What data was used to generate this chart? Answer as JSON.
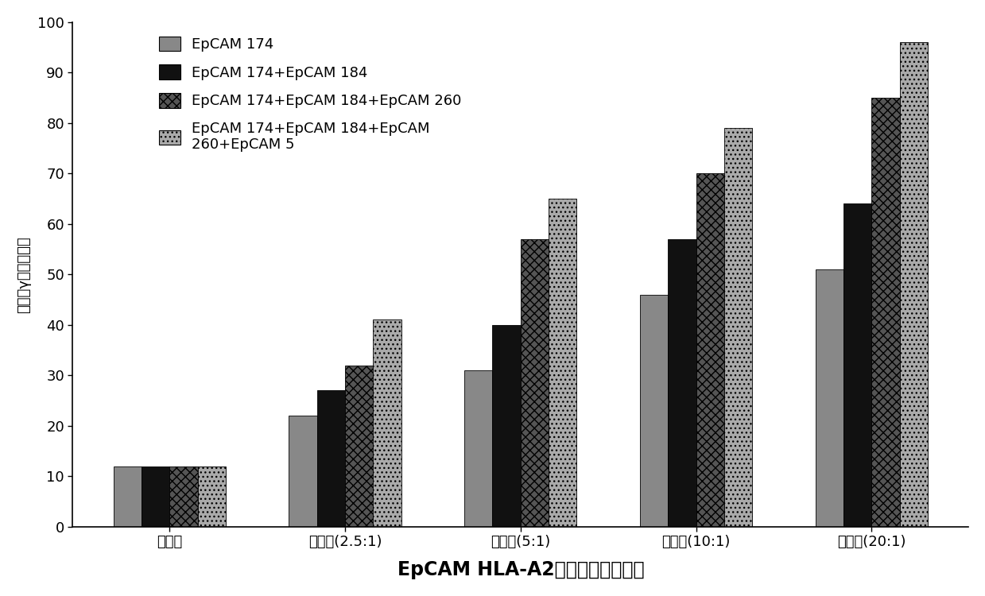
{
  "categories": [
    "对照组",
    "效靶比(2.5:1)",
    "效靶比(5:1)",
    "效靶比(10:1)",
    "效靶比(20:1)"
  ],
  "series": [
    {
      "label": "EpCAM 174",
      "color": "#888888",
      "hatch": "",
      "values": [
        12,
        22,
        31,
        46,
        51
      ]
    },
    {
      "label": "EpCAM 174+EpCAM 184",
      "color": "#111111",
      "hatch": "",
      "values": [
        12,
        27,
        40,
        57,
        64
      ]
    },
    {
      "label": "EpCAM 174+EpCAM 184+EpCAM 260",
      "color": "#555555",
      "hatch": "xxx",
      "values": [
        12,
        32,
        57,
        70,
        85
      ]
    },
    {
      "label": "EpCAM 174+EpCAM 184+EpCAM\n260+EpCAM 5",
      "color": "#aaaaaa",
      "hatch": "...",
      "values": [
        12,
        41,
        65,
        79,
        96
      ]
    }
  ],
  "xlabel": "EpCAM HLA-A2阳性抵原表位多肽",
  "ylabel": "干扰素γ酶联班点数",
  "ylim": [
    0,
    100
  ],
  "yticks": [
    0,
    10,
    20,
    30,
    40,
    50,
    60,
    70,
    80,
    90,
    100
  ],
  "bar_width": 0.16,
  "tick_fontsize": 13,
  "legend_fontsize": 13,
  "xlabel_fontsize": 17,
  "ylabel_fontsize": 13,
  "background_color": "#ffffff"
}
